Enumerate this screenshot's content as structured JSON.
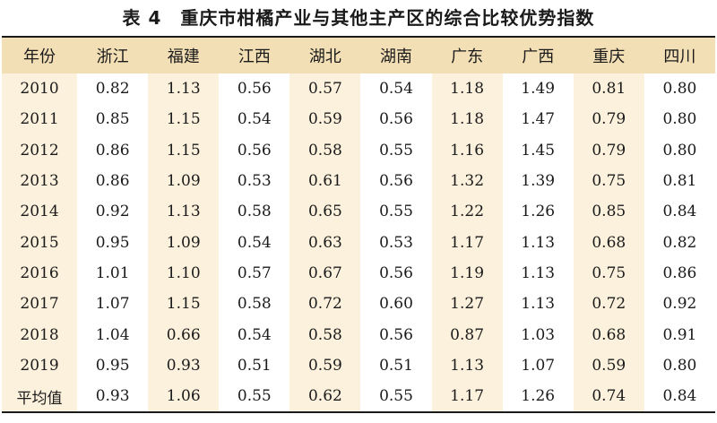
{
  "title": "表 4　重庆市柑橘产业与其他主产区的综合比较优势指数",
  "headers": [
    "年份",
    "浙江",
    "福建",
    "江西",
    "湖北",
    "湖南",
    "广东",
    "广西",
    "重庆",
    "四川"
  ],
  "rows": [
    [
      "2010",
      "0.82",
      "1.13",
      "0.56",
      "0.57",
      "0.54",
      "1.18",
      "1.49",
      "0.81",
      "0.80"
    ],
    [
      "2011",
      "0.85",
      "1.15",
      "0.54",
      "0.59",
      "0.56",
      "1.18",
      "1.47",
      "0.79",
      "0.80"
    ],
    [
      "2012",
      "0.86",
      "1.15",
      "0.56",
      "0.58",
      "0.55",
      "1.16",
      "1.45",
      "0.79",
      "0.80"
    ],
    [
      "2013",
      "0.86",
      "1.09",
      "0.53",
      "0.61",
      "0.56",
      "1.32",
      "1.39",
      "0.75",
      "0.81"
    ],
    [
      "2014",
      "0.92",
      "1.13",
      "0.58",
      "0.65",
      "0.55",
      "1.22",
      "1.26",
      "0.85",
      "0.84"
    ],
    [
      "2015",
      "0.95",
      "1.09",
      "0.54",
      "0.63",
      "0.53",
      "1.17",
      "1.13",
      "0.68",
      "0.82"
    ],
    [
      "2016",
      "1.01",
      "1.10",
      "0.57",
      "0.67",
      "0.56",
      "1.19",
      "1.13",
      "0.75",
      "0.86"
    ],
    [
      "2017",
      "1.07",
      "1.15",
      "0.58",
      "0.72",
      "0.60",
      "1.27",
      "1.13",
      "0.72",
      "0.92"
    ],
    [
      "2018",
      "1.04",
      "0.66",
      "0.54",
      "0.58",
      "0.56",
      "0.87",
      "1.03",
      "0.68",
      "0.91"
    ],
    [
      "2019",
      "0.95",
      "0.93",
      "0.51",
      "0.59",
      "0.51",
      "1.13",
      "1.07",
      "0.59",
      "0.80"
    ],
    [
      "平均值",
      "0.93",
      "1.06",
      "0.55",
      "0.62",
      "0.55",
      "1.17",
      "1.26",
      "0.74",
      "0.84"
    ]
  ],
  "colors": {
    "header_bg": "#f3dfb5",
    "shade_bg": "#fcf1dc",
    "plain_bg": "#ffffff"
  }
}
